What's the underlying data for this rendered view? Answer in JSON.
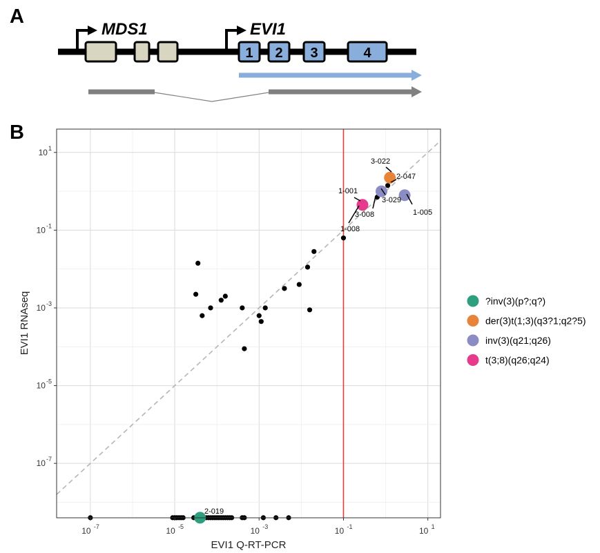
{
  "figure": {
    "panel_a_label": "A",
    "panel_b_label": "B"
  },
  "gene_diagram": {
    "genes": [
      {
        "name": "MDS1"
      },
      {
        "name": "EVI1"
      }
    ],
    "mds1_exons": 3,
    "evi1_exons": [
      "1",
      "2",
      "3",
      "4"
    ],
    "colors": {
      "mds1_exon": "#d8d5c1",
      "evi1_exon": "#8aaedb",
      "evi1_transcript": "#8aaedb",
      "fusion_transcript": "#808080"
    }
  },
  "chart_data": {
    "type": "scatter",
    "xlabel": "EVI1 Q-RT-PCR",
    "ylabel": "EVI1 RNAseq",
    "xscale": "log10",
    "yscale": "log10",
    "xlim_log10": [
      -7.8,
      1.3
    ],
    "ylim_log10": [
      -8.4,
      1.6
    ],
    "x_ticks": [
      {
        "base": "10",
        "exp": "-7",
        "value": 1e-07
      },
      {
        "base": "10",
        "exp": "-5",
        "value": 1e-05
      },
      {
        "base": "10",
        "exp": "-3",
        "value": 0.001
      },
      {
        "base": "10",
        "exp": "-1",
        "value": 0.1
      },
      {
        "base": "10",
        "exp": "1",
        "value": 10
      }
    ],
    "y_ticks": [
      {
        "base": "10",
        "exp": "1",
        "value": 10
      },
      {
        "base": "10",
        "exp": "-1",
        "value": 0.1
      },
      {
        "base": "10",
        "exp": "-3",
        "value": 0.001
      },
      {
        "base": "10",
        "exp": "-5",
        "value": 1e-05
      },
      {
        "base": "10",
        "exp": "-7",
        "value": 1e-07
      }
    ],
    "grid": true,
    "reference_lines": {
      "identity_diagonal": true,
      "vertical_threshold_x": 0.1,
      "vertical_threshold_color": "#e0403a"
    },
    "legend_position": "right",
    "legend": [
      {
        "label": "?inv(3)(p?;q?)",
        "color": "#2e9e7e"
      },
      {
        "label": "der(3)t(1;3)(q3?1;q2?5)",
        "color": "#e8843a"
      },
      {
        "label": "inv(3)(q21;q26)",
        "color": "#8c8cc4"
      },
      {
        "label": "t(3;8)(q26;q24)",
        "color": "#e63a8c"
      }
    ],
    "highlighted_points": [
      {
        "x": 3.98e-05,
        "y": 4e-09,
        "group": "?inv(3)(p?;q?)"
      },
      {
        "x": 1.26,
        "y": 2.24,
        "group": "der(3)t(1;3)(q3?1;q2?5)"
      },
      {
        "x": 0.794,
        "y": 1.0,
        "group": "inv(3)(q21;q26)"
      },
      {
        "x": 2.82,
        "y": 0.794,
        "group": "inv(3)(q21;q26)"
      },
      {
        "x": 0.282,
        "y": 0.447,
        "group": "t(3;8)(q26;q24)"
      }
    ],
    "black_points": [
      {
        "x": 0.1,
        "y": 0.063
      },
      {
        "x": 0.631,
        "y": 0.708
      },
      {
        "x": 1.12,
        "y": 1.41
      },
      {
        "x": 3.55e-05,
        "y": 0.0141
      },
      {
        "x": 3.16e-05,
        "y": 0.00224
      },
      {
        "x": 4.47e-05,
        "y": 0.000631
      },
      {
        "x": 7.08e-05,
        "y": 0.001
      },
      {
        "x": 0.000126,
        "y": 0.00158
      },
      {
        "x": 0.000158,
        "y": 0.002
      },
      {
        "x": 0.000398,
        "y": 0.001
      },
      {
        "x": 0.000447,
        "y": 8.91e-05
      },
      {
        "x": 0.001,
        "y": 0.000631
      },
      {
        "x": 0.00112,
        "y": 0.000447
      },
      {
        "x": 0.0014,
        "y": 0.001
      },
      {
        "x": 0.00398,
        "y": 0.00316
      },
      {
        "x": 0.00891,
        "y": 0.004
      },
      {
        "x": 0.0141,
        "y": 0.0112
      },
      {
        "x": 0.0158,
        "y": 0.000891
      },
      {
        "x": 0.02,
        "y": 0.0282
      }
    ],
    "zero_points": [
      {
        "x": 1e-07,
        "y": 4e-09
      },
      {
        "x": 8.91e-06,
        "y": 4e-09
      },
      {
        "x": 9.98e-06,
        "y": 4e-09
      },
      {
        "x": 1.12e-05,
        "y": 4e-09
      },
      {
        "x": 1.26e-05,
        "y": 4e-09
      },
      {
        "x": 1.41e-05,
        "y": 4e-09
      },
      {
        "x": 1.58e-05,
        "y": 4e-09
      },
      {
        "x": 2.82e-05,
        "y": 4e-09
      },
      {
        "x": 3.16e-05,
        "y": 4e-09
      },
      {
        "x": 3.55e-05,
        "y": 4e-09
      },
      {
        "x": 4.47e-05,
        "y": 4e-09
      },
      {
        "x": 5.01e-05,
        "y": 4e-09
      },
      {
        "x": 5.62e-05,
        "y": 4e-09
      },
      {
        "x": 6.31e-05,
        "y": 4e-09
      },
      {
        "x": 7.08e-05,
        "y": 4e-09
      },
      {
        "x": 7.94e-05,
        "y": 4e-09
      },
      {
        "x": 8.91e-05,
        "y": 4e-09
      },
      {
        "x": 0.0001,
        "y": 4e-09
      },
      {
        "x": 0.000112,
        "y": 4e-09
      },
      {
        "x": 0.000126,
        "y": 4e-09
      },
      {
        "x": 0.000141,
        "y": 4e-09
      },
      {
        "x": 0.000158,
        "y": 4e-09
      },
      {
        "x": 0.000178,
        "y": 4e-09
      },
      {
        "x": 0.0002,
        "y": 4e-09
      },
      {
        "x": 0.000224,
        "y": 4e-09
      },
      {
        "x": 0.000398,
        "y": 4e-09
      },
      {
        "x": 0.000447,
        "y": 4e-09
      },
      {
        "x": 0.00126,
        "y": 4e-09
      },
      {
        "x": 0.00251,
        "y": 4e-09
      },
      {
        "x": 0.00501,
        "y": 4e-09
      }
    ],
    "point_labels": [
      {
        "text": "3-022"
      },
      {
        "text": "2-047"
      },
      {
        "text": "1-001"
      },
      {
        "text": "3-029"
      },
      {
        "text": "1-005"
      },
      {
        "text": "3-008"
      },
      {
        "text": "1-008"
      },
      {
        "text": "2-019"
      }
    ]
  }
}
